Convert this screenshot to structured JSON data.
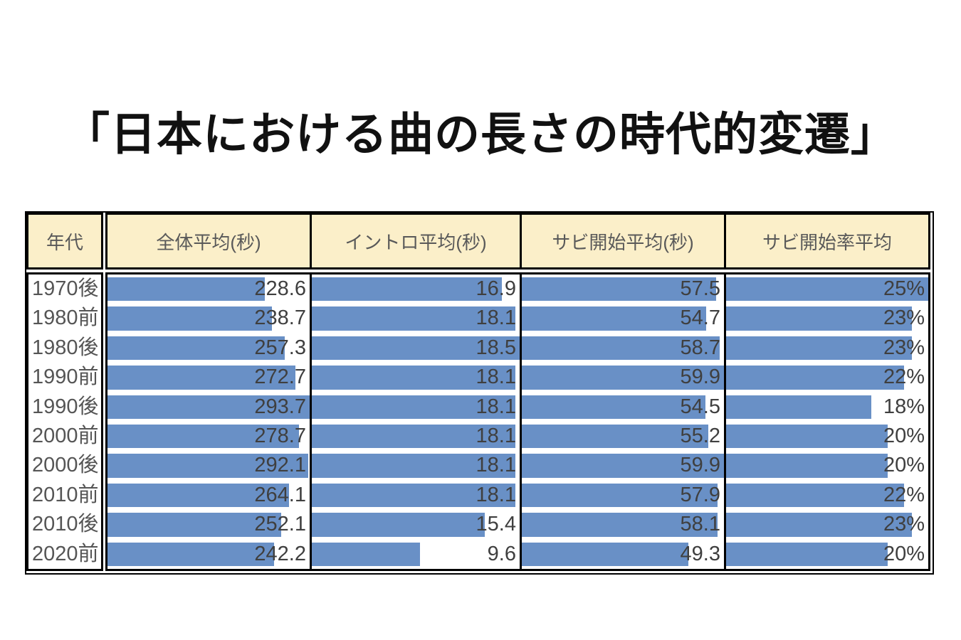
{
  "title": "「日本における曲の長さの時代的変遷」",
  "table": {
    "columns": [
      {
        "key": "era",
        "label": "年代"
      },
      {
        "key": "overall",
        "label": "全体平均(秒)"
      },
      {
        "key": "intro",
        "label": "イントロ平均(秒)"
      },
      {
        "key": "chorus",
        "label": "サビ開始平均(秒)"
      },
      {
        "key": "rate",
        "label": "サビ開始率平均"
      }
    ],
    "rows": [
      {
        "era": "1970後",
        "overall": "228.6",
        "intro": "16.9",
        "chorus": "57.5",
        "rate": "25%"
      },
      {
        "era": "1980前",
        "overall": "238.7",
        "intro": "18.1",
        "chorus": "54.7",
        "rate": "23%"
      },
      {
        "era": "1980後",
        "overall": "257.3",
        "intro": "18.5",
        "chorus": "58.7",
        "rate": "23%"
      },
      {
        "era": "1990前",
        "overall": "272.7",
        "intro": "18.1",
        "chorus": "59.9",
        "rate": "22%"
      },
      {
        "era": "1990後",
        "overall": "293.7",
        "intro": "18.1",
        "chorus": "54.5",
        "rate": "18%"
      },
      {
        "era": "2000前",
        "overall": "278.7",
        "intro": "18.1",
        "chorus": "55.2",
        "rate": "20%"
      },
      {
        "era": "2000後",
        "overall": "292.1",
        "intro": "18.1",
        "chorus": "59.9",
        "rate": "20%"
      },
      {
        "era": "2010前",
        "overall": "264.1",
        "intro": "18.1",
        "chorus": "57.9",
        "rate": "22%"
      },
      {
        "era": "2010後",
        "overall": "252.1",
        "intro": "15.4",
        "chorus": "58.1",
        "rate": "23%"
      },
      {
        "era": "2020前",
        "overall": "242.2",
        "intro": "9.6",
        "chorus": "49.3",
        "rate": "20%"
      }
    ]
  },
  "chart_data": {
    "type": "bar",
    "title": "「日本における曲の長さの時代的変遷」",
    "categories": [
      "1970後",
      "1980前",
      "1980後",
      "1990前",
      "1990後",
      "2000前",
      "2000後",
      "2010前",
      "2010後",
      "2020前"
    ],
    "series": [
      {
        "name": "全体平均(秒)",
        "values": [
          228.6,
          238.7,
          257.3,
          272.7,
          293.7,
          278.7,
          292.1,
          264.1,
          252.1,
          242.2
        ]
      },
      {
        "name": "イントロ平均(秒)",
        "values": [
          16.9,
          18.1,
          18.5,
          18.1,
          18.1,
          18.1,
          18.1,
          18.1,
          15.4,
          9.6
        ]
      },
      {
        "name": "サビ開始平均(秒)",
        "values": [
          57.5,
          54.7,
          58.7,
          59.9,
          54.5,
          55.2,
          59.9,
          57.9,
          58.1,
          49.3
        ]
      },
      {
        "name": "サビ開始率平均(%)",
        "values": [
          25,
          23,
          23,
          22,
          18,
          20,
          20,
          22,
          23,
          20
        ]
      }
    ],
    "layout": "horizontal data bars embedded in table cells; each column's bars scaled linearly from 0 to that column's max value; values right-aligned over bars; grid off; no legend",
    "bar_color": "#6990C6"
  },
  "colors": {
    "bar": "#6990C6",
    "header_bg": "#FBEFC9",
    "border": "#000000",
    "value_text": "#3f3f3f",
    "era_text": "#555555",
    "header_text": "#595959"
  }
}
